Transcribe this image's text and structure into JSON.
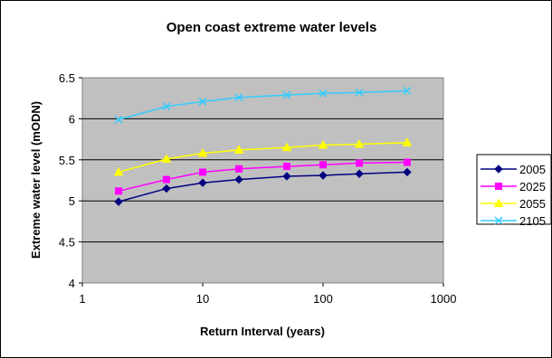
{
  "chart_data": {
    "type": "line",
    "title": "Open coast extreme water levels",
    "xlabel": "Return Interval (years)",
    "ylabel": "Extreme water level (mODN)",
    "x_scale": "log",
    "xlim": [
      1,
      1000
    ],
    "ylim": [
      4,
      6.5
    ],
    "x_ticks": [
      "1",
      "10",
      "100",
      "1000"
    ],
    "y_ticks": [
      "4",
      "4.5",
      "5",
      "5.5",
      "6",
      "6.5"
    ],
    "grid": "horizontal",
    "legend_position": "right",
    "x": [
      2,
      5,
      10,
      20,
      50,
      100,
      200,
      500
    ],
    "series": [
      {
        "name": "2005",
        "values": [
          4.99,
          5.15,
          5.22,
          5.26,
          5.3,
          5.31,
          5.33,
          5.35
        ],
        "color": "#000080",
        "marker": "diamond"
      },
      {
        "name": "2025",
        "values": [
          5.12,
          5.26,
          5.35,
          5.39,
          5.42,
          5.44,
          5.46,
          5.47
        ],
        "color": "#ff00ff",
        "marker": "square"
      },
      {
        "name": "2055",
        "values": [
          5.35,
          5.51,
          5.58,
          5.62,
          5.65,
          5.68,
          5.69,
          5.71
        ],
        "color": "#ffff00",
        "marker": "triangle"
      },
      {
        "name": "2105",
        "values": [
          5.99,
          6.15,
          6.21,
          6.26,
          6.29,
          6.31,
          6.32,
          6.34
        ],
        "color": "#33ccff",
        "marker": "cross"
      }
    ],
    "plot_background": "#c0c0c0"
  }
}
